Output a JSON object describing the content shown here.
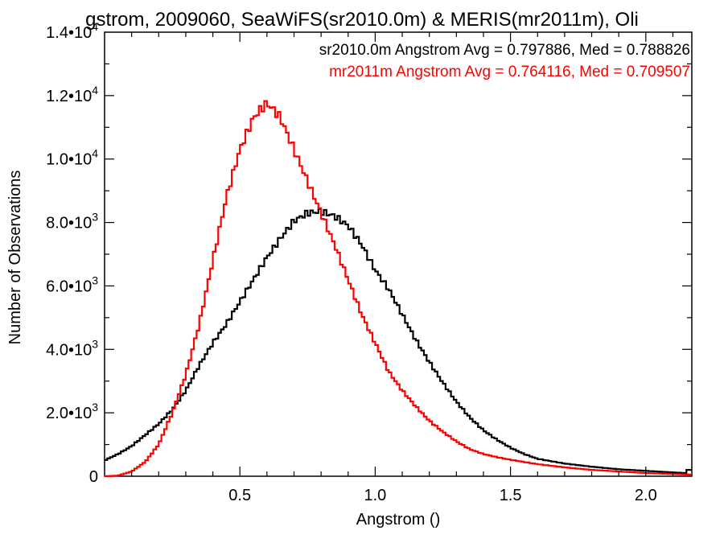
{
  "chart_data": {
    "type": "line",
    "title": "gstrom, 2009060, SeaWiFS(sr2010.0m) & MERIS(mr2011m), Oli",
    "xlabel": "Angstrom ()",
    "ylabel": "Number of Observations",
    "xlim": [
      0.0,
      2.17
    ],
    "ylim": [
      0,
      14000
    ],
    "xticks": [
      0.5,
      1.0,
      1.5,
      2.0
    ],
    "xtick_labels": [
      "0.5",
      "1.0",
      "1.5",
      "2.0"
    ],
    "yticks": [
      0,
      2000,
      4000,
      6000,
      8000,
      10000,
      12000,
      14000
    ],
    "ytick_labels": [
      {
        "mantissa": "0",
        "exp": ""
      },
      {
        "mantissa": "2.0•10",
        "exp": "3"
      },
      {
        "mantissa": "4.0•10",
        "exp": "3"
      },
      {
        "mantissa": "6.0•10",
        "exp": "3"
      },
      {
        "mantissa": "8.0•10",
        "exp": "3"
      },
      {
        "mantissa": "1.0•10",
        "exp": "4"
      },
      {
        "mantissa": "1.2•10",
        "exp": "4"
      },
      {
        "mantissa": "1.4•10",
        "exp": "4"
      }
    ],
    "grid": false,
    "legend_position": "top-right",
    "series": [
      {
        "name": "sr2010.0m Angstrom Avg = 0.797886, Med = 0.788826",
        "color": "#000000",
        "x": [
          0.0,
          0.05,
          0.1,
          0.15,
          0.2,
          0.25,
          0.3,
          0.35,
          0.4,
          0.45,
          0.5,
          0.55,
          0.6,
          0.65,
          0.7,
          0.75,
          0.8,
          0.85,
          0.9,
          0.95,
          1.0,
          1.05,
          1.1,
          1.15,
          1.2,
          1.25,
          1.3,
          1.35,
          1.4,
          1.45,
          1.5,
          1.55,
          1.6,
          1.7,
          1.8,
          1.9,
          2.0,
          2.1,
          2.15,
          2.16,
          2.17
        ],
        "y": [
          500,
          700,
          950,
          1300,
          1650,
          2100,
          2700,
          3500,
          4200,
          4800,
          5500,
          6200,
          6900,
          7500,
          8050,
          8300,
          8350,
          8200,
          7900,
          7300,
          6500,
          5900,
          5100,
          4300,
          3600,
          2950,
          2350,
          1850,
          1450,
          1150,
          900,
          700,
          550,
          400,
          300,
          220,
          170,
          120,
          100,
          300,
          100
        ]
      },
      {
        "name": "mr2011m Angstrom Avg = 0.764116, Med = 0.709507",
        "color": "#ff0000",
        "x": [
          0.0,
          0.05,
          0.1,
          0.15,
          0.2,
          0.25,
          0.3,
          0.35,
          0.4,
          0.45,
          0.5,
          0.55,
          0.58,
          0.6,
          0.62,
          0.65,
          0.7,
          0.75,
          0.8,
          0.85,
          0.9,
          0.95,
          1.0,
          1.05,
          1.1,
          1.15,
          1.2,
          1.25,
          1.3,
          1.35,
          1.4,
          1.45,
          1.5,
          1.55,
          1.6,
          1.7,
          1.8,
          1.9,
          2.0,
          2.1,
          2.17
        ],
        "y": [
          0,
          20,
          150,
          450,
          1000,
          2000,
          3200,
          4800,
          6800,
          8800,
          10300,
          11300,
          11600,
          11750,
          11600,
          11300,
          10300,
          9300,
          8300,
          7300,
          6200,
          5100,
          4200,
          3300,
          2700,
          2200,
          1750,
          1400,
          1100,
          850,
          700,
          600,
          520,
          450,
          380,
          280,
          200,
          150,
          100,
          70,
          50
        ]
      }
    ]
  }
}
